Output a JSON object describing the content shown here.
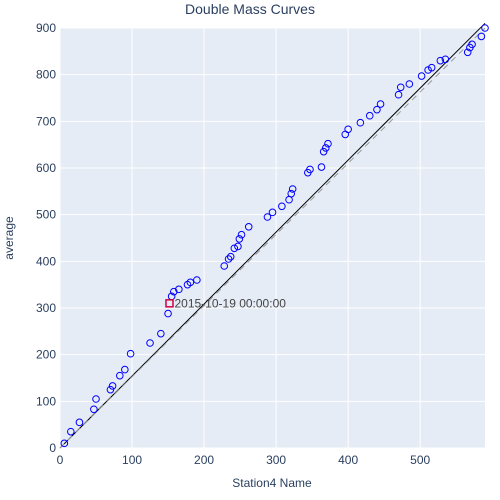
{
  "chart_data": {
    "type": "scatter",
    "title": "Double Mass Curves",
    "xlabel": "Station4 Name",
    "ylabel": "average",
    "xlim": [
      0,
      590
    ],
    "ylim": [
      0,
      900
    ],
    "xticks": [
      0,
      100,
      200,
      300,
      400,
      500
    ],
    "yticks": [
      0,
      100,
      200,
      300,
      400,
      500,
      600,
      700,
      800,
      900
    ],
    "grid": true,
    "colors": {
      "plot_background": "#E5ECF6",
      "grid": "#ffffff",
      "points": "#0000ff",
      "trend_line": "#000000",
      "reference_line": "#999999",
      "highlight": "#cc0044"
    },
    "series": [
      {
        "type": "scatter",
        "marker": "open-circle",
        "points": [
          [
            6,
            10
          ],
          [
            15,
            35
          ],
          [
            27,
            55
          ],
          [
            47,
            83
          ],
          [
            50,
            105
          ],
          [
            70,
            125
          ],
          [
            73,
            133
          ],
          [
            83,
            155
          ],
          [
            90,
            168
          ],
          [
            98,
            202
          ],
          [
            125,
            225
          ],
          [
            140,
            245
          ],
          [
            150,
            288
          ],
          [
            155,
            325
          ],
          [
            158,
            335
          ],
          [
            165,
            340
          ],
          [
            177,
            350
          ],
          [
            181,
            355
          ],
          [
            190,
            360
          ],
          [
            228,
            390
          ],
          [
            234,
            405
          ],
          [
            237,
            410
          ],
          [
            242,
            428
          ],
          [
            247,
            432
          ],
          [
            249,
            448
          ],
          [
            252,
            457
          ],
          [
            262,
            474
          ],
          [
            288,
            495
          ],
          [
            295,
            505
          ],
          [
            308,
            518
          ],
          [
            318,
            532
          ],
          [
            321,
            545
          ],
          [
            323,
            555
          ],
          [
            344,
            590
          ],
          [
            347,
            597
          ],
          [
            363,
            602
          ],
          [
            366,
            635
          ],
          [
            369,
            643
          ],
          [
            372,
            652
          ],
          [
            396,
            672
          ],
          [
            400,
            683
          ],
          [
            417,
            697
          ],
          [
            430,
            712
          ],
          [
            440,
            725
          ],
          [
            445,
            737
          ],
          [
            470,
            757
          ],
          [
            473,
            773
          ],
          [
            485,
            780
          ],
          [
            502,
            797
          ],
          [
            511,
            810
          ],
          [
            516,
            815
          ],
          [
            528,
            830
          ],
          [
            535,
            833
          ],
          [
            566,
            848
          ],
          [
            569,
            858
          ],
          [
            572,
            865
          ],
          [
            585,
            882
          ],
          [
            590,
            900
          ]
        ]
      },
      {
        "type": "line",
        "role": "fit",
        "points": [
          [
            0,
            0
          ],
          [
            590,
            910
          ]
        ]
      },
      {
        "type": "line",
        "role": "reference",
        "dash": "dashed",
        "points": [
          [
            0,
            0
          ],
          [
            590,
            900
          ]
        ]
      },
      {
        "type": "marker",
        "role": "highlight",
        "marker": "open-square",
        "points": [
          [
            152,
            310
          ]
        ]
      }
    ],
    "annotations": [
      {
        "text": "2015-10-19 00:00:00",
        "x": 152,
        "y": 310
      }
    ]
  }
}
